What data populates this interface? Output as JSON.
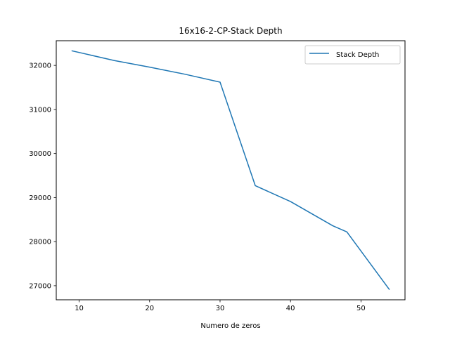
{
  "chart_data": {
    "type": "line",
    "title": "16x16-2-CP-Stack Depth",
    "xlabel": "Numero de zeros",
    "ylabel": "",
    "xlim": [
      6.75,
      56.25
    ],
    "ylim": [
      26680,
      32560
    ],
    "xticks": [
      10,
      20,
      30,
      40,
      50
    ],
    "yticks": [
      27000,
      28000,
      29000,
      30000,
      31000,
      32000
    ],
    "xtick_labels": [
      "10",
      "20",
      "30",
      "40",
      "50"
    ],
    "ytick_labels": [
      "27000",
      "28000",
      "29000",
      "30000",
      "31000",
      "32000"
    ],
    "grid": false,
    "legend_position": "upper right",
    "series": [
      {
        "name": "Stack Depth",
        "color": "#1f77b4",
        "x": [
          9,
          15,
          20,
          25,
          30,
          35,
          40,
          46,
          48,
          54
        ],
        "y": [
          32330,
          32110,
          31960,
          31800,
          31620,
          29270,
          28910,
          28360,
          28220,
          26920
        ]
      }
    ]
  }
}
